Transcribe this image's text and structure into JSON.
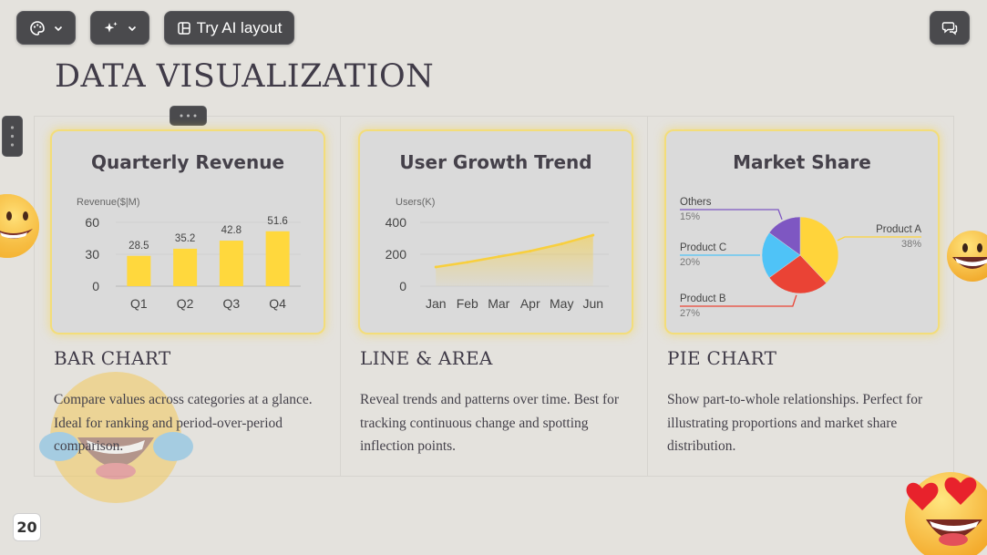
{
  "toolbar": {
    "theme_icon": "palette-icon",
    "ai_icon": "sparkle-icon",
    "ai_layout_label": "Try AI layout",
    "layout_icon": "layout-icon",
    "comment_icon": "comment-icon"
  },
  "page_title": "DATA VISUALIZATION",
  "page_number": "20",
  "colors": {
    "bar": "#ffd83d",
    "line": "#f8cf3e",
    "pie_product_a": "#ffd43b",
    "pie_product_b": "#ea4335",
    "pie_product_c": "#4fc3f7",
    "pie_others": "#7e57c2"
  },
  "sections": [
    {
      "heading": "BAR CHART",
      "description": "Compare values across categories at a glance. Ideal for ranking and period-over-period comparison."
    },
    {
      "heading": "LINE & AREA",
      "description": "Reveal trends and patterns over time. Best for tracking continuous change and spotting inflection points."
    },
    {
      "heading": "PIE CHART",
      "description": "Show part-to-whole relationships. Perfect for illustrating proportions and market share distribution."
    }
  ],
  "chart_data": [
    {
      "type": "bar",
      "title": "Quarterly Revenue",
      "ylabel": "Revenue($|M)",
      "categories": [
        "Q1",
        "Q2",
        "Q3",
        "Q4"
      ],
      "values": [
        28.5,
        35.2,
        42.8,
        51.6
      ],
      "yticks": [
        0,
        30,
        60
      ],
      "ylim": [
        0,
        60
      ],
      "grid": true
    },
    {
      "type": "area",
      "title": "User Growth Trend",
      "ylabel": "Users(K)",
      "categories": [
        "Jan",
        "Feb",
        "Mar",
        "Apr",
        "May",
        "Jun"
      ],
      "values": [
        120,
        150,
        185,
        220,
        265,
        320
      ],
      "yticks": [
        0,
        200,
        400
      ],
      "ylim": [
        0,
        400
      ],
      "grid": true
    },
    {
      "type": "pie",
      "title": "Market Share",
      "slices": [
        {
          "label": "Product A",
          "value": 38,
          "display": "38%"
        },
        {
          "label": "Product B",
          "value": 27,
          "display": "27%"
        },
        {
          "label": "Product C",
          "value": 20,
          "display": "20%"
        },
        {
          "label": "Others",
          "value": 15,
          "display": "15%"
        }
      ]
    }
  ]
}
